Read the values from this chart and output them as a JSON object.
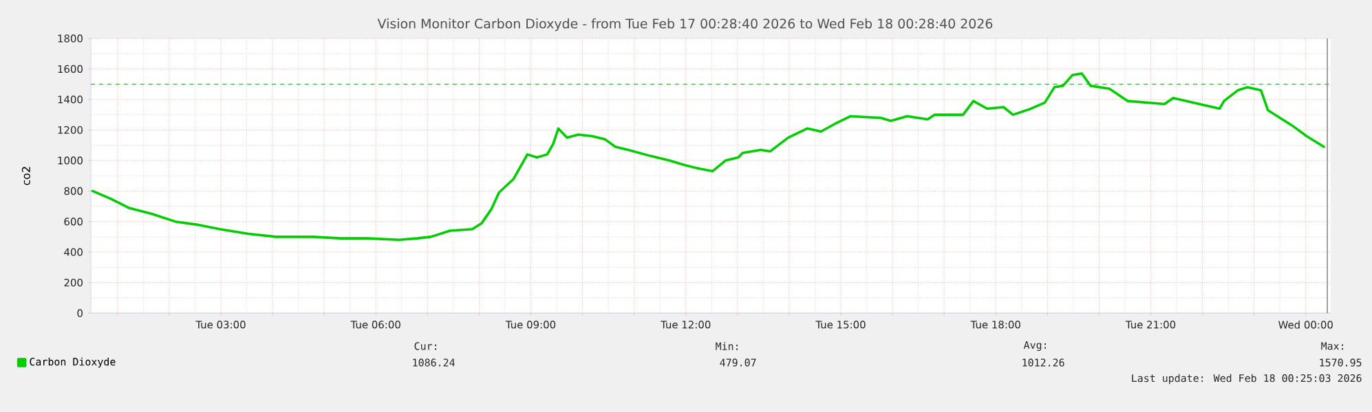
{
  "chart_data": {
    "type": "line",
    "title": "Vision Monitor Carbon Dioxyde - from Tue Feb 17 00:28:40 2026 to Wed Feb 18 00:28:40 2026",
    "ylabel": "co2",
    "x": [
      "2026-02-17T00:31",
      "2026-02-17T00:52",
      "2026-02-17T01:13",
      "2026-02-17T01:40",
      "2026-02-17T02:07",
      "2026-02-17T02:32",
      "2026-02-17T02:59",
      "2026-02-17T03:32",
      "2026-02-17T04:04",
      "2026-02-17T04:47",
      "2026-02-17T05:19",
      "2026-02-17T05:50",
      "2026-02-17T06:27",
      "2026-02-17T06:48",
      "2026-02-17T07:04",
      "2026-02-17T07:26",
      "2026-02-17T07:52",
      "2026-02-17T08:03",
      "2026-02-17T08:14",
      "2026-02-17T08:23",
      "2026-02-17T08:40",
      "2026-02-17T08:56",
      "2026-02-17T09:07",
      "2026-02-17T09:19",
      "2026-02-17T09:26",
      "2026-02-17T09:32",
      "2026-02-17T09:42",
      "2026-02-17T09:55",
      "2026-02-17T10:11",
      "2026-02-17T10:26",
      "2026-02-17T10:38",
      "2026-02-17T10:53",
      "2026-02-17T11:19",
      "2026-02-17T11:41",
      "2026-02-17T11:59",
      "2026-02-17T12:13",
      "2026-02-17T12:31",
      "2026-02-17T12:46",
      "2026-02-17T13:01",
      "2026-02-17T13:06",
      "2026-02-17T13:27",
      "2026-02-17T13:38",
      "2026-02-17T13:59",
      "2026-02-17T14:21",
      "2026-02-17T14:37",
      "2026-02-17T14:53",
      "2026-02-17T15:11",
      "2026-02-17T15:46",
      "2026-02-17T15:58",
      "2026-02-17T16:17",
      "2026-02-17T16:41",
      "2026-02-17T16:49",
      "2026-02-17T17:22",
      "2026-02-17T17:34",
      "2026-02-17T17:50",
      "2026-02-17T18:09",
      "2026-02-17T18:20",
      "2026-02-17T18:41",
      "2026-02-17T18:57",
      "2026-02-17T19:08",
      "2026-02-17T19:18",
      "2026-02-17T19:29",
      "2026-02-17T19:40",
      "2026-02-17T19:50",
      "2026-02-17T20:12",
      "2026-02-17T20:33",
      "2026-02-17T21:16",
      "2026-02-17T21:26",
      "2026-02-17T22:20",
      "2026-02-17T22:25",
      "2026-02-17T22:41",
      "2026-02-17T22:52",
      "2026-02-17T23:08",
      "2026-02-17T23:16",
      "2026-02-17T23:44",
      "2026-02-18T00:01",
      "2026-02-18T00:21"
    ],
    "series": [
      {
        "name": "Carbon Dioxyde",
        "color": "#00cc00",
        "values": [
          800,
          750,
          690,
          650,
          600,
          580,
          550,
          520,
          500,
          500,
          490,
          490,
          480,
          490,
          500,
          540,
          550,
          590,
          680,
          790,
          880,
          1040,
          1020,
          1040,
          1110,
          1210,
          1150,
          1170,
          1160,
          1140,
          1090,
          1070,
          1030,
          1000,
          970,
          950,
          930,
          1000,
          1020,
          1050,
          1070,
          1060,
          1150,
          1210,
          1190,
          1240,
          1290,
          1280,
          1260,
          1290,
          1270,
          1300,
          1300,
          1390,
          1340,
          1350,
          1300,
          1340,
          1380,
          1480,
          1490,
          1560,
          1570,
          1490,
          1470,
          1390,
          1370,
          1410,
          1340,
          1390,
          1460,
          1480,
          1460,
          1330,
          1230,
          1160,
          1090
        ]
      }
    ],
    "xlim": [
      "2026-02-17T00:29",
      "2026-02-18T00:29"
    ],
    "ylim": [
      0,
      1800
    ],
    "xticks": [
      {
        "value": "2026-02-17T01:00",
        "label": null
      },
      {
        "value": "2026-02-17T02:00",
        "label": null
      },
      {
        "value": "2026-02-17T03:00",
        "label": "Tue 03:00"
      },
      {
        "value": "2026-02-17T04:00",
        "label": null
      },
      {
        "value": "2026-02-17T05:00",
        "label": null
      },
      {
        "value": "2026-02-17T06:00",
        "label": "Tue 06:00"
      },
      {
        "value": "2026-02-17T07:00",
        "label": null
      },
      {
        "value": "2026-02-17T08:00",
        "label": null
      },
      {
        "value": "2026-02-17T09:00",
        "label": "Tue 09:00"
      },
      {
        "value": "2026-02-17T10:00",
        "label": null
      },
      {
        "value": "2026-02-17T11:00",
        "label": null
      },
      {
        "value": "2026-02-17T12:00",
        "label": "Tue 12:00"
      },
      {
        "value": "2026-02-17T13:00",
        "label": null
      },
      {
        "value": "2026-02-17T14:00",
        "label": null
      },
      {
        "value": "2026-02-17T15:00",
        "label": "Tue 15:00"
      },
      {
        "value": "2026-02-17T16:00",
        "label": null
      },
      {
        "value": "2026-02-17T17:00",
        "label": null
      },
      {
        "value": "2026-02-17T18:00",
        "label": "Tue 18:00"
      },
      {
        "value": "2026-02-17T19:00",
        "label": null
      },
      {
        "value": "2026-02-17T20:00",
        "label": null
      },
      {
        "value": "2026-02-17T21:00",
        "label": "Tue 21:00"
      },
      {
        "value": "2026-02-17T22:00",
        "label": null
      },
      {
        "value": "2026-02-17T23:00",
        "label": null
      },
      {
        "value": "2026-02-18T00:00",
        "label": "Wed 00:00"
      }
    ],
    "yticks": [
      0,
      200,
      400,
      600,
      800,
      1000,
      1200,
      1400,
      1600,
      1800
    ],
    "ref_lines": [
      {
        "axis": "y",
        "value": 1500,
        "color": "#44aa44",
        "line_style": "dashed"
      },
      {
        "axis": "x",
        "value": "2026-02-18T00:25",
        "color": "#888888",
        "line_style": "solid"
      }
    ],
    "grid": true,
    "legend": "bottom left",
    "marker": "none",
    "line_style": "solid",
    "annotations": [
      "Cur:",
      "1086.24",
      "Min:",
      "479.07",
      "Avg:",
      "1012.26",
      "Max:",
      "1570.95",
      "Last update: Wed Feb 18 00:25:03 2026"
    ]
  }
}
